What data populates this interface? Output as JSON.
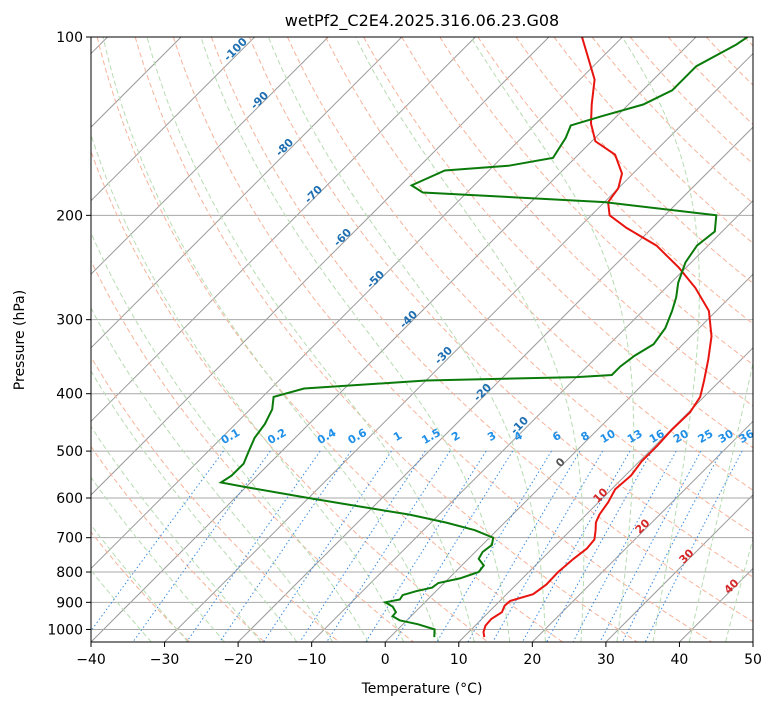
{
  "chart_data": {
    "type": "line",
    "subtype": "skew-T log-P diagram",
    "title": "wetPf2_C2E4.2025.316.06.23.G08",
    "xlabel": "Temperature (°C)",
    "ylabel": "Pressure (hPa)",
    "xlim": [
      -40,
      50
    ],
    "ylim": [
      1050,
      100
    ],
    "xticks": [
      "−40",
      "−30",
      "−20",
      "−10",
      "0",
      "10",
      "20",
      "30",
      "40",
      "50"
    ],
    "xtick_values": [
      -40,
      -30,
      -20,
      -10,
      0,
      10,
      20,
      30,
      40,
      50
    ],
    "yticks": [
      "100",
      "200",
      "300",
      "400",
      "500",
      "600",
      "700",
      "800",
      "900",
      "1000"
    ],
    "ytick_values": [
      100,
      200,
      300,
      400,
      500,
      600,
      700,
      800,
      900,
      1000
    ],
    "series": [
      {
        "name": "Temperature",
        "color": "#e8140f",
        "points": [
          [
            12.8,
            1030
          ],
          [
            12.0,
            1010
          ],
          [
            11.4,
            985
          ],
          [
            11.3,
            960
          ],
          [
            11.8,
            935
          ],
          [
            11.3,
            912
          ],
          [
            11.4,
            895
          ],
          [
            13.6,
            872
          ],
          [
            14.1,
            840
          ],
          [
            14.0,
            800
          ],
          [
            14.3,
            760
          ],
          [
            14.7,
            730
          ],
          [
            14.5,
            705
          ],
          [
            13.4,
            680
          ],
          [
            12.4,
            660
          ],
          [
            11.8,
            640
          ],
          [
            11.3,
            610
          ],
          [
            10.5,
            580
          ],
          [
            10.8,
            550
          ],
          [
            10.3,
            520
          ],
          [
            10.3,
            490
          ],
          [
            10.1,
            460
          ],
          [
            10.2,
            430
          ],
          [
            9.5,
            405
          ],
          [
            7.8,
            380
          ],
          [
            5.5,
            350
          ],
          [
            2.8,
            320
          ],
          [
            -1.0,
            290
          ],
          [
            -6.0,
            265
          ],
          [
            -11.0,
            245
          ],
          [
            -17.0,
            225
          ],
          [
            -23.5,
            210
          ],
          [
            -27.5,
            200
          ],
          [
            -29.5,
            190
          ],
          [
            -30.0,
            180
          ],
          [
            -31.5,
            170
          ],
          [
            -35.0,
            158
          ],
          [
            -39.5,
            150
          ],
          [
            -42.5,
            140
          ],
          [
            -45.0,
            130
          ],
          [
            -48.0,
            118
          ],
          [
            -52.0,
            108
          ],
          [
            -55.5,
            100
          ]
        ]
      },
      {
        "name": "Dewpoint",
        "color": "#0a7a0a",
        "points": [
          [
            6.0,
            1030
          ],
          [
            5.5,
            1015
          ],
          [
            5.0,
            1000
          ],
          [
            2.0,
            980
          ],
          [
            -1.0,
            965
          ],
          [
            -2.5,
            950
          ],
          [
            -2.6,
            935
          ],
          [
            -3.8,
            915
          ],
          [
            -5.4,
            900
          ],
          [
            -3.8,
            890
          ],
          [
            -4.0,
            875
          ],
          [
            -2.7,
            862
          ],
          [
            -1.0,
            850
          ],
          [
            -0.8,
            835
          ],
          [
            1.5,
            820
          ],
          [
            3.2,
            800
          ],
          [
            3.0,
            780
          ],
          [
            1.4,
            760
          ],
          [
            1.0,
            740
          ],
          [
            1.3,
            720
          ],
          [
            0.5,
            700
          ],
          [
            -3.0,
            680
          ],
          [
            -8.0,
            660
          ],
          [
            -14.0,
            640
          ],
          [
            -22.0,
            620
          ],
          [
            -30.0,
            600
          ],
          [
            -40.0,
            575
          ],
          [
            -44.0,
            565
          ],
          [
            -43.5,
            550
          ],
          [
            -43.5,
            525
          ],
          [
            -44.5,
            500
          ],
          [
            -45.5,
            475
          ],
          [
            -46.0,
            450
          ],
          [
            -47.0,
            425
          ],
          [
            -48.5,
            405
          ],
          [
            -45.5,
            392
          ],
          [
            -30.0,
            380
          ],
          [
            -10.0,
            375
          ],
          [
            -5.5,
            372
          ],
          [
            -5.5,
            360
          ],
          [
            -5.0,
            345
          ],
          [
            -4.0,
            330
          ],
          [
            -4.6,
            310
          ],
          [
            -6.0,
            290
          ],
          [
            -7.3,
            275
          ],
          [
            -9.0,
            260
          ],
          [
            -10.8,
            240
          ],
          [
            -11.5,
            225
          ],
          [
            -11.0,
            213
          ],
          [
            -13.0,
            200
          ],
          [
            -30.0,
            190
          ],
          [
            -56.0,
            183
          ],
          [
            -58.5,
            178
          ],
          [
            -56.0,
            168
          ],
          [
            -48.0,
            165
          ],
          [
            -43.0,
            160
          ],
          [
            -44.0,
            148
          ],
          [
            -45.0,
            141
          ],
          [
            -42.0,
            136
          ],
          [
            -38.0,
            130
          ],
          [
            -36.0,
            123
          ],
          [
            -36.0,
            112
          ],
          [
            -33.5,
            103
          ],
          [
            -33.0,
            100
          ]
        ]
      }
    ],
    "mixing_ratio_labels": [
      "0.1",
      "0.2",
      "0.4",
      "0.6",
      "1",
      "1.5",
      "2",
      "3",
      "4",
      "6",
      "8",
      "10",
      "13",
      "16",
      "20",
      "25",
      "30",
      "36"
    ],
    "dry_adiabat_labels": [
      "-100",
      "-90",
      "-80",
      "-70",
      "-60",
      "-50",
      "-40",
      "-30",
      "-20",
      "-10"
    ],
    "moist_adiabat_labels": [
      "0",
      "10",
      "20",
      "30",
      "40"
    ]
  }
}
